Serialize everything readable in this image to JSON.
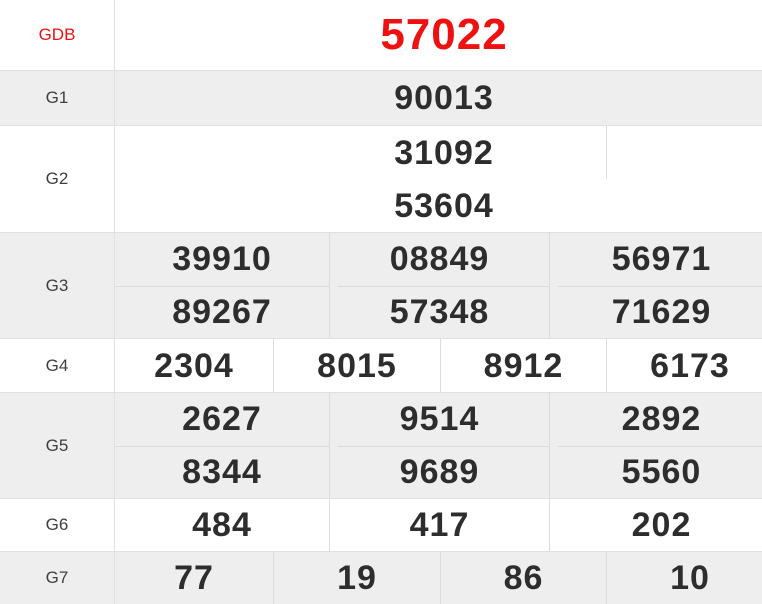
{
  "colors": {
    "accent_red": "#ee1111",
    "text_dark": "#2d2d2d",
    "label_text": "#3f3f3f",
    "row_gray": "#eeeeee",
    "border": "#e0e0e0",
    "divider": "#dcdcdc"
  },
  "rows": [
    {
      "label": "GDB",
      "values": [
        "57022"
      ]
    },
    {
      "label": "G1",
      "values": [
        "90013"
      ]
    },
    {
      "label": "G2",
      "values": [
        "31092",
        "53604"
      ]
    },
    {
      "label": "G3",
      "values": [
        "39910",
        "08849",
        "56971",
        "89267",
        "57348",
        "71629"
      ]
    },
    {
      "label": "G4",
      "values": [
        "2304",
        "8015",
        "8912",
        "6173"
      ]
    },
    {
      "label": "G5",
      "values": [
        "2627",
        "9514",
        "2892",
        "8344",
        "9689",
        "5560"
      ]
    },
    {
      "label": "G6",
      "values": [
        "484",
        "417",
        "202"
      ]
    },
    {
      "label": "G7",
      "values": [
        "77",
        "19",
        "86",
        "10"
      ]
    }
  ]
}
